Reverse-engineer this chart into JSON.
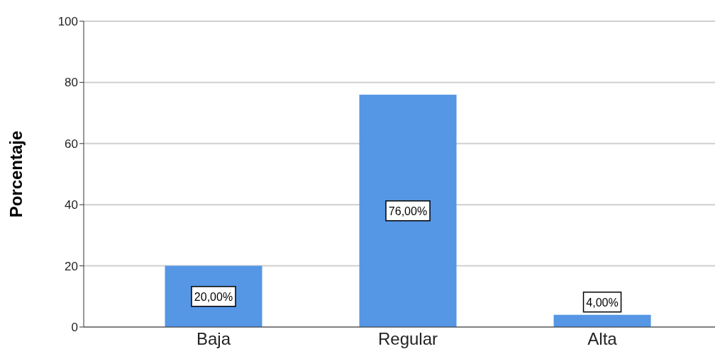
{
  "chart_data": {
    "type": "bar",
    "ylabel": "Porcentaje",
    "categories": [
      "Baja",
      "Regular",
      "Alta"
    ],
    "values": [
      20,
      76,
      4
    ],
    "color": "#5596e5",
    "value_labels": [
      "20,00%",
      "76,00%",
      "4,00%"
    ],
    "ylim": [
      0,
      100
    ],
    "yticks": [
      0,
      20,
      40,
      60,
      80,
      100
    ],
    "grid": "y"
  }
}
